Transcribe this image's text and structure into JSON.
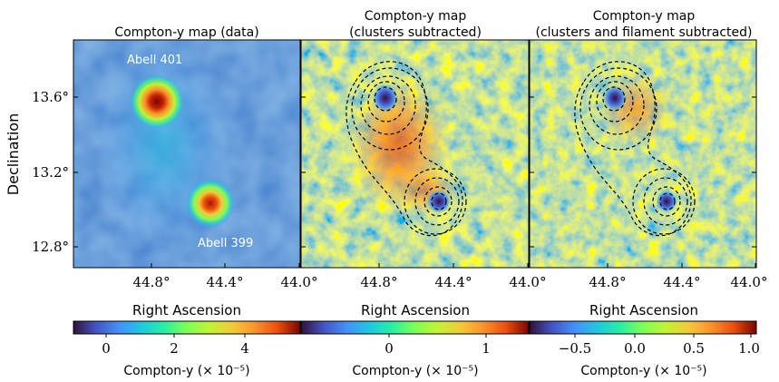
{
  "figure": {
    "ylabel": "Declination",
    "y_ticks": [
      "13.6°",
      "13.2°",
      "12.8°"
    ],
    "x_ticks": [
      "44.8°",
      "44.4°",
      "44.0°"
    ],
    "xlabel": "Right Ascension",
    "colormap": "turbo"
  },
  "panels": [
    {
      "title_lines": [
        "Compton-y map (data)"
      ],
      "annotations": [
        "Abell 401",
        "Abell 399"
      ],
      "contours": false,
      "colorbar": {
        "ticks": [
          "0",
          "2",
          "4"
        ],
        "label": "Compton-y (× 10⁻⁵)"
      }
    },
    {
      "title_lines": [
        "Compton-y map",
        "(clusters subtracted)"
      ],
      "annotations": [],
      "contours": true,
      "colorbar": {
        "ticks": [
          "0",
          "1"
        ],
        "label": "Compton-y (× 10⁻⁵)"
      }
    },
    {
      "title_lines": [
        "Compton-y map",
        "(clusters and filament subtracted)"
      ],
      "annotations": [],
      "contours": true,
      "colorbar": {
        "ticks": [
          "−0.5",
          "0.0",
          "0.5",
          "1.0"
        ],
        "label": "Compton-y (× 10⁻⁵)"
      }
    }
  ],
  "chart_data": [
    {
      "type": "heatmap",
      "title": "Compton-y map (data)",
      "xlabel": "Right Ascension",
      "ylabel": "Declination",
      "xlim": [
        45.0,
        44.0
      ],
      "ylim": [
        12.7,
        13.9
      ],
      "colorbar_range": [
        -1.0,
        6.0
      ],
      "colorbar_ticks": [
        0,
        2,
        4
      ],
      "colorbar_label": "Compton-y (× 10⁻⁵)",
      "sources": [
        {
          "name": "Abell 401",
          "ra": 44.74,
          "dec": 13.58
        },
        {
          "name": "Abell 399",
          "ra": 44.47,
          "dec": 13.03
        }
      ]
    },
    {
      "type": "heatmap",
      "title": "Compton-y map (clusters subtracted)",
      "xlabel": "Right Ascension",
      "xlim": [
        45.0,
        44.0
      ],
      "ylim": [
        12.7,
        13.9
      ],
      "colorbar_range": [
        -0.6,
        1.2
      ],
      "colorbar_ticks": [
        0,
        1
      ],
      "colorbar_label": "Compton-y (× 10⁻⁵)",
      "contours": "dashed black around both clusters and the bridge"
    },
    {
      "type": "heatmap",
      "title": "Compton-y map (clusters and filament subtracted)",
      "xlabel": "Right Ascension",
      "xlim": [
        45.0,
        44.0
      ],
      "ylim": [
        12.7,
        13.9
      ],
      "colorbar_range": [
        -0.9,
        1.0
      ],
      "colorbar_ticks": [
        -0.5,
        0.0,
        0.5,
        1.0
      ],
      "colorbar_label": "Compton-y (× 10⁻⁵)",
      "contours": "dashed black around both clusters and the bridge"
    }
  ]
}
